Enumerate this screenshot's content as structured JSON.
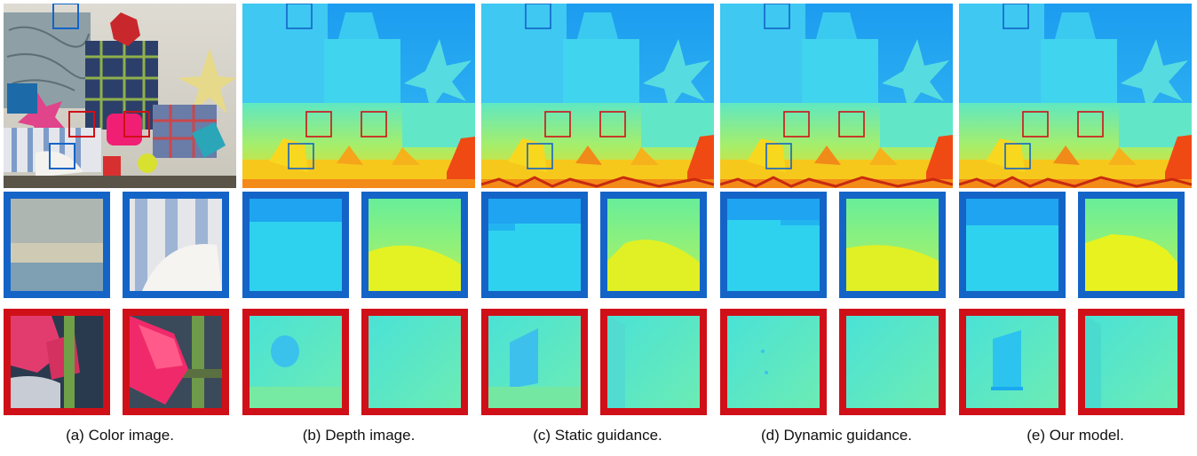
{
  "colors": {
    "blue_box": "#1464c8",
    "red_box": "#d01018"
  },
  "panels": [
    {
      "id": "a",
      "caption": "(a) Color image.",
      "kind": "color"
    },
    {
      "id": "b",
      "caption": "(b) Depth image.",
      "kind": "depth"
    },
    {
      "id": "c",
      "caption": "(c) Static guidance.",
      "kind": "depth"
    },
    {
      "id": "d",
      "caption": "(d) Dynamic guidance.",
      "kind": "depth"
    },
    {
      "id": "e",
      "caption": "(e) Our model.",
      "kind": "depth"
    }
  ]
}
